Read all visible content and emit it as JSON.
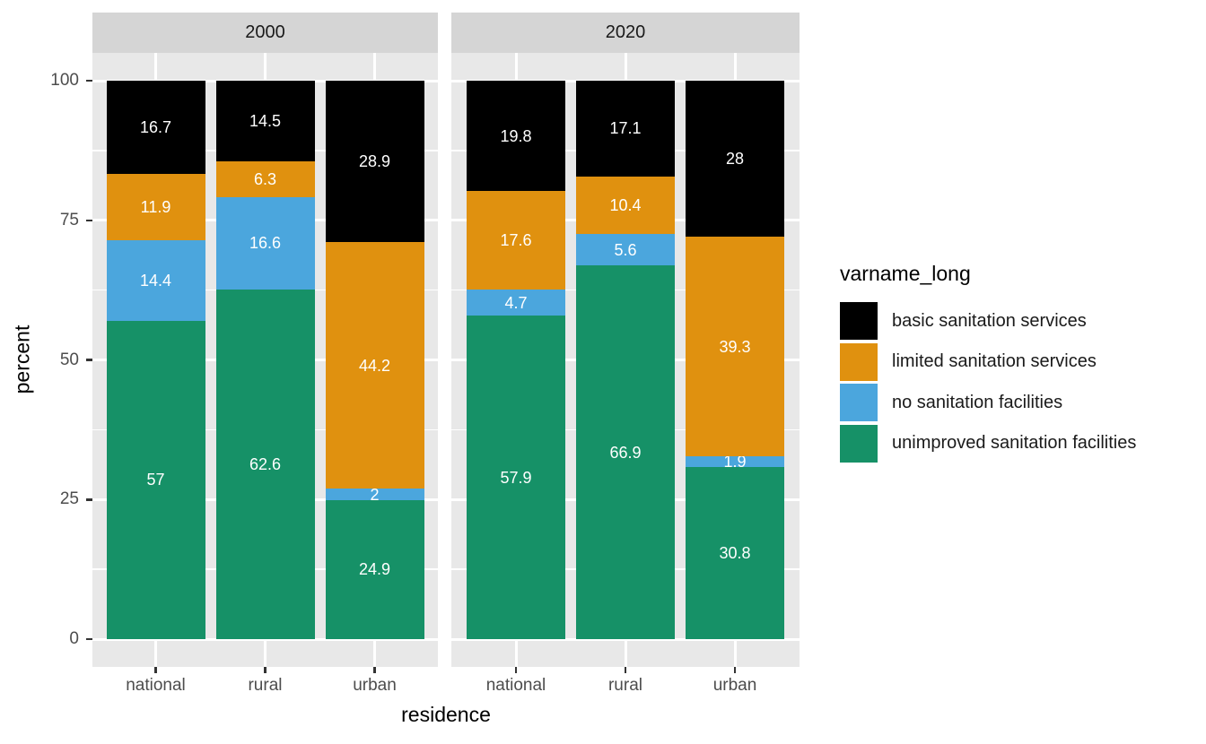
{
  "chart_data": {
    "type": "bar",
    "stacked": true,
    "title": "",
    "xlabel": "residence",
    "ylabel": "percent",
    "ylim": [
      0,
      100
    ],
    "y_major_ticks": [
      0,
      25,
      50,
      75,
      100
    ],
    "y_minor_ticks": [
      12.5,
      37.5,
      62.5,
      87.5
    ],
    "grid": "white-on-gray",
    "legend_title": "varname_long",
    "legend_position": "right",
    "facets": [
      "2000",
      "2020"
    ],
    "categories": [
      "national",
      "rural",
      "urban"
    ],
    "stack_order_bottom_to_top": [
      "unimproved sanitation facilities",
      "no sanitation facilities",
      "limited sanitation services",
      "basic sanitation services"
    ],
    "series": [
      {
        "name": "basic sanitation services",
        "color": "#000000",
        "values": {
          "2000": [
            16.7,
            14.5,
            28.9
          ],
          "2020": [
            19.8,
            17.1,
            28
          ]
        }
      },
      {
        "name": "limited sanitation services",
        "color": "#e0910f",
        "values": {
          "2000": [
            11.9,
            6.3,
            44.2
          ],
          "2020": [
            17.6,
            10.4,
            39.3
          ]
        }
      },
      {
        "name": "no sanitation facilities",
        "color": "#4ba6dd",
        "values": {
          "2000": [
            14.4,
            16.6,
            2
          ],
          "2020": [
            4.7,
            5.6,
            1.9
          ]
        }
      },
      {
        "name": "unimproved sanitation facilities",
        "color": "#169167",
        "values": {
          "2000": [
            57,
            62.6,
            24.9
          ],
          "2020": [
            57.9,
            66.9,
            30.8
          ]
        }
      }
    ],
    "bar_label_color": "#ffffff",
    "colors": {
      "panel_background": "#e8e8e8",
      "strip_background": "#d5d5d5",
      "gridline": "#ffffff",
      "tick_mark": "#333333",
      "axis_text": "#4d4d4d",
      "axis_title": "#000000"
    }
  }
}
